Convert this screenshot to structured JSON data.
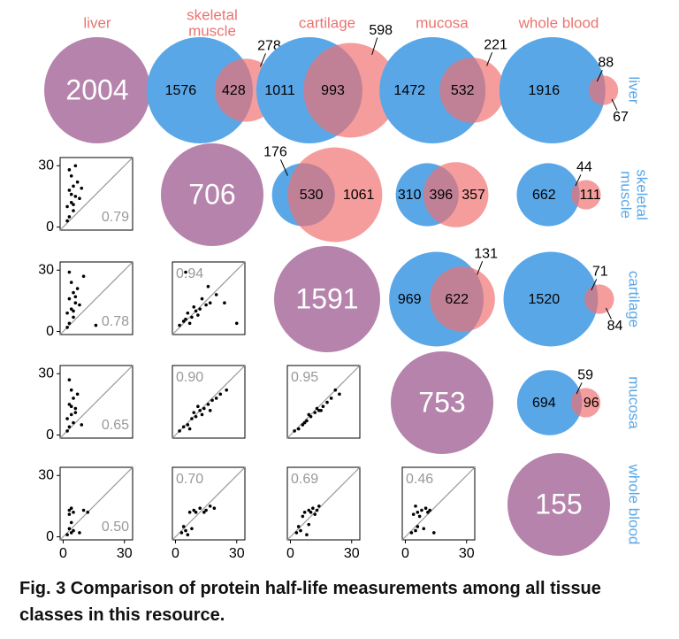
{
  "column_labels": [
    [
      "liver"
    ],
    [
      "skeletal",
      "muscle"
    ],
    [
      "cartilage"
    ],
    [
      "mucosa"
    ],
    [
      "whole blood"
    ]
  ],
  "row_labels": [
    [
      "liver"
    ],
    [
      "skeletal",
      "muscle"
    ],
    [
      "cartilage"
    ],
    [
      "mucosa"
    ],
    [
      "whole blood"
    ]
  ],
  "diagonal": [
    2004,
    706,
    1591,
    753,
    155
  ],
  "venns": [
    {
      "left": 1576,
      "overlap": 428,
      "right": 278
    },
    {
      "left": 1011,
      "overlap": 993,
      "right": 598
    },
    {
      "left": 1472,
      "overlap": 532,
      "right": 221
    },
    {
      "left": 1916,
      "overlap": 88,
      "right": 67
    },
    {
      "left": 176,
      "overlap": 530,
      "right": 1061
    },
    {
      "left": 310,
      "overlap": 396,
      "right": 357
    },
    {
      "left": 662,
      "overlap": 44,
      "right": 111
    },
    {
      "left": 969,
      "overlap": 622,
      "right": 131
    },
    {
      "left": 1520,
      "overlap": 71,
      "right": 84
    },
    {
      "left": 694,
      "overlap": 59,
      "right": 96
    }
  ],
  "ticks": [
    0,
    30
  ],
  "scatter": [
    {
      "r": "0.79",
      "points": [
        [
          3,
          28
        ],
        [
          4,
          25
        ],
        [
          5,
          20
        ],
        [
          3,
          18
        ],
        [
          6,
          15
        ],
        [
          4,
          12
        ],
        [
          2,
          10
        ],
        [
          5,
          8
        ],
        [
          7,
          22
        ],
        [
          3,
          5
        ],
        [
          6,
          30
        ],
        [
          8,
          14
        ],
        [
          2,
          3
        ],
        [
          5,
          11
        ],
        [
          4,
          16
        ],
        [
          9,
          19
        ]
      ]
    },
    {
      "r": "0.78",
      "points": [
        [
          3,
          29
        ],
        [
          4,
          24
        ],
        [
          5,
          19
        ],
        [
          3,
          16
        ],
        [
          6,
          14
        ],
        [
          4,
          11
        ],
        [
          2,
          9
        ],
        [
          5,
          7
        ],
        [
          7,
          21
        ],
        [
          3,
          4
        ],
        [
          8,
          13
        ],
        [
          2,
          2
        ],
        [
          5,
          10
        ],
        [
          10,
          27
        ],
        [
          6,
          17
        ],
        [
          16,
          3
        ]
      ]
    },
    {
      "r": "0.94",
      "points": [
        [
          2,
          3
        ],
        [
          5,
          6
        ],
        [
          8,
          7
        ],
        [
          10,
          10
        ],
        [
          12,
          11
        ],
        [
          15,
          13
        ],
        [
          6,
          9
        ],
        [
          9,
          12
        ],
        [
          13,
          16
        ],
        [
          17,
          14
        ],
        [
          20,
          18
        ],
        [
          4,
          5
        ],
        [
          11,
          8
        ],
        [
          7,
          4
        ],
        [
          24,
          14
        ],
        [
          5,
          29
        ],
        [
          30,
          4
        ],
        [
          16,
          22
        ]
      ]
    },
    {
      "r": "0.65",
      "points": [
        [
          3,
          27
        ],
        [
          4,
          22
        ],
        [
          5,
          18
        ],
        [
          3,
          15
        ],
        [
          6,
          13
        ],
        [
          4,
          10
        ],
        [
          2,
          8
        ],
        [
          5,
          6
        ],
        [
          7,
          20
        ],
        [
          3,
          4
        ],
        [
          2,
          2
        ],
        [
          6,
          11
        ],
        [
          4,
          14
        ],
        [
          9,
          5
        ]
      ]
    },
    {
      "r": "0.90",
      "points": [
        [
          2,
          2
        ],
        [
          4,
          4
        ],
        [
          6,
          5
        ],
        [
          8,
          8
        ],
        [
          10,
          9
        ],
        [
          12,
          12
        ],
        [
          14,
          13
        ],
        [
          16,
          15
        ],
        [
          18,
          17
        ],
        [
          20,
          18
        ],
        [
          22,
          20
        ],
        [
          9,
          11
        ],
        [
          13,
          10
        ],
        [
          7,
          3
        ],
        [
          25,
          22
        ],
        [
          17,
          12
        ],
        [
          11,
          14
        ]
      ]
    },
    {
      "r": "0.95",
      "points": [
        [
          2,
          2
        ],
        [
          4,
          3
        ],
        [
          6,
          5
        ],
        [
          8,
          7
        ],
        [
          10,
          9
        ],
        [
          12,
          11
        ],
        [
          14,
          12
        ],
        [
          16,
          14
        ],
        [
          18,
          16
        ],
        [
          20,
          18
        ],
        [
          24,
          20
        ],
        [
          9,
          10
        ],
        [
          13,
          13
        ],
        [
          7,
          6
        ],
        [
          22,
          22
        ],
        [
          15,
          12
        ]
      ]
    },
    {
      "r": "0.50",
      "points": [
        [
          3,
          13
        ],
        [
          4,
          14
        ],
        [
          5,
          12
        ],
        [
          3,
          11
        ],
        [
          4,
          2
        ],
        [
          2,
          1
        ],
        [
          5,
          3
        ],
        [
          3,
          4
        ],
        [
          10,
          13
        ],
        [
          12,
          12
        ],
        [
          8,
          2
        ],
        [
          4,
          7
        ]
      ]
    },
    {
      "r": "0.70",
      "points": [
        [
          3,
          2
        ],
        [
          5,
          3
        ],
        [
          7,
          12
        ],
        [
          9,
          13
        ],
        [
          12,
          14
        ],
        [
          15,
          13
        ],
        [
          17,
          15
        ],
        [
          4,
          5
        ],
        [
          6,
          1
        ],
        [
          10,
          12
        ],
        [
          14,
          12
        ],
        [
          19,
          14
        ],
        [
          8,
          4
        ]
      ]
    },
    {
      "r": "0.69",
      "points": [
        [
          3,
          2
        ],
        [
          5,
          3
        ],
        [
          7,
          12
        ],
        [
          9,
          13
        ],
        [
          11,
          14
        ],
        [
          13,
          13
        ],
        [
          6,
          10
        ],
        [
          4,
          5
        ],
        [
          8,
          1
        ],
        [
          10,
          12
        ],
        [
          12,
          11
        ],
        [
          9,
          6
        ],
        [
          14,
          15
        ]
      ]
    },
    {
      "r": "0.46",
      "points": [
        [
          3,
          2
        ],
        [
          5,
          3
        ],
        [
          6,
          12
        ],
        [
          8,
          13
        ],
        [
          10,
          14
        ],
        [
          12,
          13
        ],
        [
          4,
          11
        ],
        [
          5,
          15
        ],
        [
          7,
          10
        ],
        [
          11,
          12
        ],
        [
          6,
          5
        ],
        [
          14,
          2
        ],
        [
          9,
          4
        ]
      ]
    }
  ],
  "caption": "Fig. 3 Comparison of protein half-life measurements among all tissue classes in this resource."
}
